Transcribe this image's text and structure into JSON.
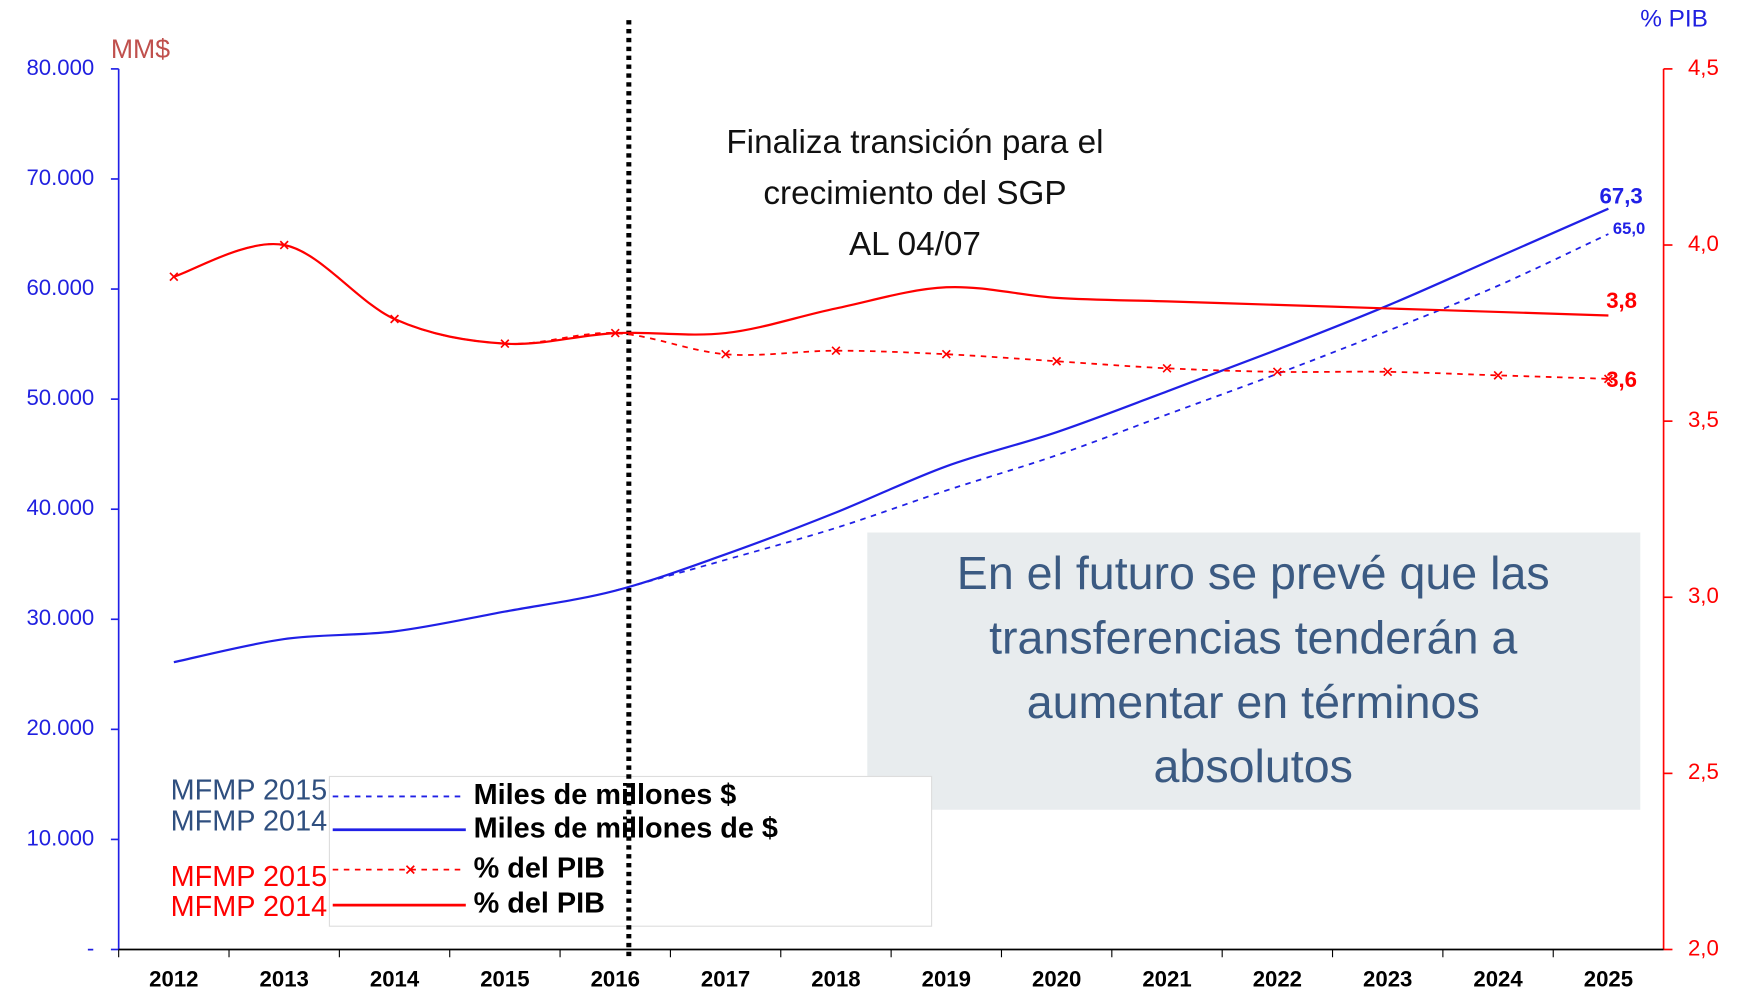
{
  "chart_data": {
    "type": "line",
    "y_axis_label": "MM$",
    "y2_axis_label": "% PIB",
    "categories": [
      "2012",
      "2013",
      "2014",
      "2015",
      "2016",
      "2017",
      "2018",
      "2019",
      "2020",
      "2021",
      "2022",
      "2023",
      "2024",
      "2025"
    ],
    "ylim": [
      0,
      80000
    ],
    "yticks": [
      {
        "value": 0,
        "label": "-"
      },
      {
        "value": 10000,
        "label": "10.000"
      },
      {
        "value": 20000,
        "label": "20.000"
      },
      {
        "value": 30000,
        "label": "30.000"
      },
      {
        "value": 40000,
        "label": "40.000"
      },
      {
        "value": 50000,
        "label": "50.000"
      },
      {
        "value": 60000,
        "label": "60.000"
      },
      {
        "value": 70000,
        "label": "70.000"
      },
      {
        "value": 80000,
        "label": "80.000"
      }
    ],
    "y2lim": [
      2.0,
      4.5
    ],
    "y2ticks": [
      {
        "value": 2.0,
        "label": "2,0"
      },
      {
        "value": 2.5,
        "label": "2,5"
      },
      {
        "value": 3.0,
        "label": "3,0"
      },
      {
        "value": 3.5,
        "label": "3,5"
      },
      {
        "value": 4.0,
        "label": "4,0"
      },
      {
        "value": 4.5,
        "label": "4,5"
      }
    ],
    "series": [
      {
        "label": "MFMP 2015",
        "name": "Miles de millones $",
        "color": "#2020e6",
        "dashed": true,
        "markers": false,
        "values": [
          null,
          null,
          null,
          null,
          32600,
          35400,
          38300,
          41700,
          44900,
          48600,
          52300,
          56200,
          60300,
          65000
        ],
        "value_labels": [
          null,
          null,
          null,
          null,
          null,
          null,
          null,
          null,
          null,
          null,
          null,
          null,
          null,
          "65,0"
        ]
      },
      {
        "label": "MFMP 2014",
        "name": "Miles de millones de $",
        "color": "#2020e6",
        "dashed": false,
        "markers": false,
        "values": [
          26100,
          28200,
          28900,
          30700,
          32600,
          35900,
          39700,
          43900,
          47000,
          50700,
          54500,
          58500,
          62900,
          67300
        ],
        "value_labels": [
          null,
          null,
          null,
          null,
          null,
          null,
          null,
          null,
          null,
          null,
          null,
          null,
          null,
          "67,3"
        ]
      },
      {
        "label": "MFMP 2015",
        "name": "% del PIB",
        "color": "#ff0000",
        "dashed": true,
        "markers": true,
        "axis": "y2",
        "values": [
          3.91,
          4.0,
          3.79,
          3.72,
          3.75,
          3.69,
          3.7,
          3.69,
          3.67,
          3.65,
          3.64,
          3.64,
          3.63,
          3.62
        ],
        "value_labels": [
          null,
          null,
          null,
          null,
          null,
          null,
          null,
          null,
          null,
          null,
          null,
          null,
          null,
          "3,6"
        ]
      },
      {
        "label": "MFMP 2014",
        "name": "% del PIB",
        "color": "#ff0000",
        "dashed": false,
        "markers": false,
        "axis": "y2",
        "values": [
          3.91,
          4.0,
          3.79,
          3.72,
          3.75,
          3.75,
          3.82,
          3.88,
          3.85,
          3.84,
          3.83,
          3.82,
          3.81,
          3.8
        ],
        "value_labels": [
          null,
          null,
          null,
          null,
          null,
          null,
          null,
          null,
          null,
          null,
          null,
          null,
          null,
          "3,8"
        ]
      }
    ],
    "annotation": [
      "Finaliza transición para el",
      "crecimiento del SGP",
      "AL 04/07"
    ],
    "note": [
      "En el futuro se prevé que las",
      "transferencias tenderán a",
      "aumentar en términos",
      "absolutos"
    ]
  }
}
